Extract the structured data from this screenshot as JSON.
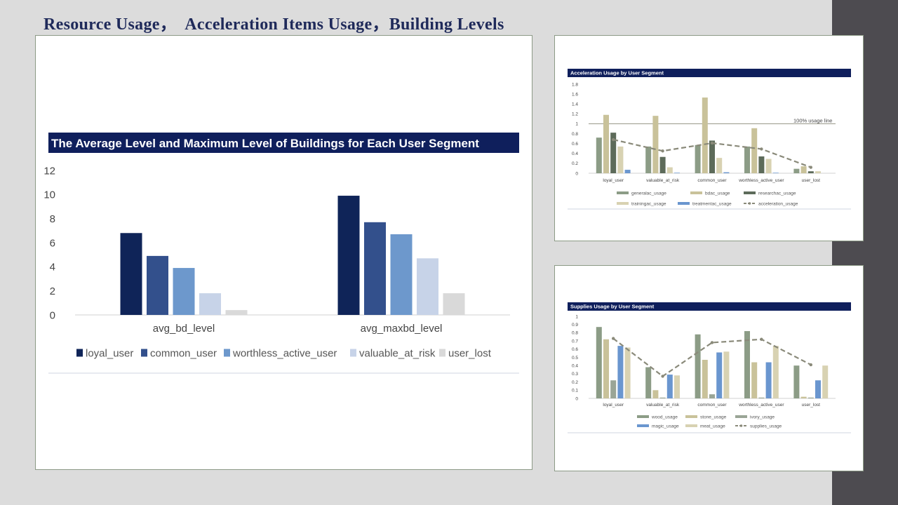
{
  "slide": {
    "title": "Resource Usage，  Acceleration Items Usage，Building Levels"
  },
  "chart_data": [
    {
      "id": "buildings",
      "type": "bar",
      "title": "The Average Level and  Maximum Level of Buildings for Each User Segment",
      "categories": [
        "avg_bd_level",
        "avg_maxbd_level"
      ],
      "ylim": [
        0,
        12
      ],
      "yticks": [
        0,
        2,
        4,
        6,
        8,
        10,
        12
      ],
      "grid": false,
      "legend_position": "bottom",
      "series": [
        {
          "name": "loyal_user",
          "values": [
            6.8,
            9.9
          ],
          "color": "#0f2458"
        },
        {
          "name": "common_user",
          "values": [
            4.9,
            7.7
          ],
          "color": "#33508c"
        },
        {
          "name": "worthless_active_user",
          "values": [
            3.9,
            6.7
          ],
          "color": "#6d98cc"
        },
        {
          "name": "valuable_at_risk",
          "values": [
            1.8,
            4.7
          ],
          "color": "#c7d3e8"
        },
        {
          "name": "user_lost",
          "values": [
            0.4,
            1.8
          ],
          "color": "#d9d9d9"
        }
      ]
    },
    {
      "id": "acceleration",
      "type": "bar",
      "title": "Acceleration Usage by User Segment",
      "categories": [
        "loyal_user",
        "valuable_at_risk",
        "common_user",
        "worthless_active_user",
        "user_lost"
      ],
      "ylim": [
        0,
        1.8
      ],
      "yticks": [
        0,
        0.2,
        0.4,
        0.6,
        0.8,
        1,
        1.2,
        1.4,
        1.6,
        1.8
      ],
      "grid": false,
      "legend_position": "bottom",
      "reference_line": {
        "value": 1,
        "label": "100% usage line"
      },
      "series": [
        {
          "name": "generalac_usage",
          "values": [
            0.72,
            0.54,
            0.57,
            0.54,
            0.09
          ],
          "color": "#8c9c86"
        },
        {
          "name": "bdac_usage",
          "values": [
            1.18,
            1.16,
            1.53,
            0.91,
            0.14
          ],
          "color": "#c9c29a"
        },
        {
          "name": "researchac_usage",
          "values": [
            0.82,
            0.33,
            0.66,
            0.34,
            0.04
          ],
          "color": "#5d6b5a"
        },
        {
          "name": "trainingac_usage",
          "values": [
            0.54,
            0.12,
            0.31,
            0.29,
            0.04
          ],
          "color": "#d8d2b2"
        },
        {
          "name": "treatmentac_usage",
          "values": [
            0.07,
            0.01,
            0.02,
            0.01,
            0.0
          ],
          "color": "#6a96cf"
        }
      ],
      "line_series": {
        "name": "acceleration_usage",
        "values": [
          0.68,
          0.45,
          0.61,
          0.49,
          0.12
        ],
        "color": "#8a8a7a"
      }
    },
    {
      "id": "supplies",
      "type": "bar",
      "title": "Supplies Usage by User Segment",
      "categories": [
        "loyal_user",
        "valuable_at_risk",
        "common_user",
        "worthless_active_user",
        "user_lost"
      ],
      "ylim": [
        0,
        1
      ],
      "yticks": [
        0,
        0.1,
        0.2,
        0.3,
        0.4,
        0.5,
        0.6,
        0.7,
        0.8,
        0.9,
        1
      ],
      "grid": false,
      "legend_position": "bottom",
      "series": [
        {
          "name": "wood_usage",
          "values": [
            0.87,
            0.38,
            0.78,
            0.82,
            0.4
          ],
          "color": "#8c9c86"
        },
        {
          "name": "stone_usage",
          "values": [
            0.72,
            0.1,
            0.47,
            0.44,
            0.02
          ],
          "color": "#c9c29a"
        },
        {
          "name": "ivory_usage",
          "values": [
            0.22,
            0.01,
            0.05,
            0.01,
            0.01
          ],
          "color": "#9aa596"
        },
        {
          "name": "magic_usage",
          "values": [
            0.64,
            0.29,
            0.56,
            0.44,
            0.22
          ],
          "color": "#6a96cf"
        },
        {
          "name": "meat_usage",
          "values": [
            0.62,
            0.28,
            0.57,
            0.64,
            0.4
          ],
          "color": "#d8d2b2"
        }
      ],
      "line_series": {
        "name": "supplies_usage",
        "values": [
          0.73,
          0.27,
          0.68,
          0.72,
          0.41
        ],
        "color": "#8a8a7a"
      }
    }
  ]
}
